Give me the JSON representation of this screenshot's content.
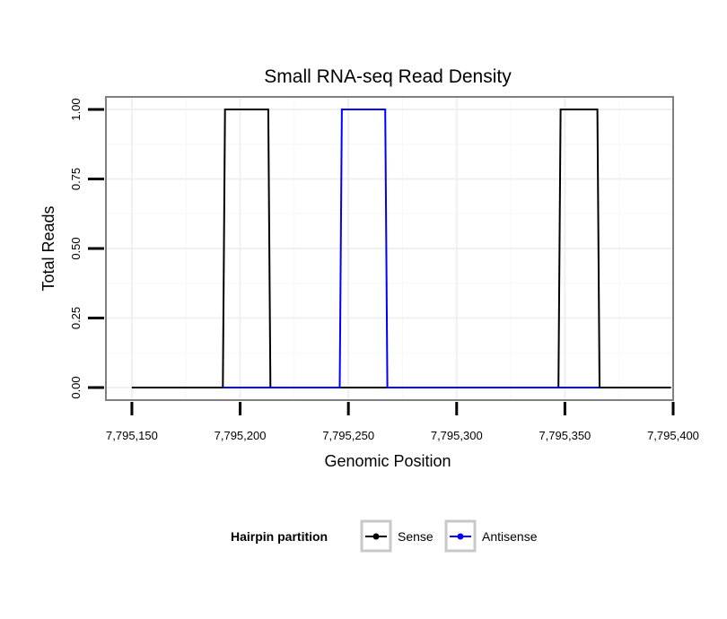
{
  "chart_data": {
    "type": "line",
    "title": "Small RNA-seq Read Density",
    "xlabel": "Genomic Position",
    "ylabel": "Total Reads",
    "xlim": [
      7795138,
      7795400
    ],
    "ylim": [
      -0.045,
      1.045
    ],
    "x_ticks": [
      7795150,
      7795200,
      7795250,
      7795300,
      7795350,
      7795400
    ],
    "x_tick_labels": [
      "7,795,150",
      "7,795,200",
      "7,795,250",
      "7,795,300",
      "7,795,350",
      "7,795,400"
    ],
    "y_ticks": [
      0,
      0.25,
      0.5,
      0.75,
      1
    ],
    "y_tick_labels": [
      "0.00",
      "0.25",
      "0.50",
      "0.75",
      "1.00"
    ],
    "grid": true,
    "legend": {
      "title": "Hairpin partition",
      "position": "bottom"
    },
    "series": [
      {
        "name": "Sense",
        "color": "#000000",
        "x": [
          7795150,
          7795192,
          7795193,
          7795213,
          7795214,
          7795347,
          7795348,
          7795365,
          7795366,
          7795399
        ],
        "y": [
          0,
          0,
          1,
          1,
          0,
          0,
          1,
          1,
          0,
          0
        ]
      },
      {
        "name": "Antisense",
        "color": "#0000ff",
        "x": [
          7795192,
          7795214,
          7795246,
          7795247,
          7795267,
          7795268,
          7795347,
          7795366
        ],
        "y": [
          0,
          0,
          0,
          1,
          1,
          0,
          0,
          0
        ]
      }
    ]
  }
}
